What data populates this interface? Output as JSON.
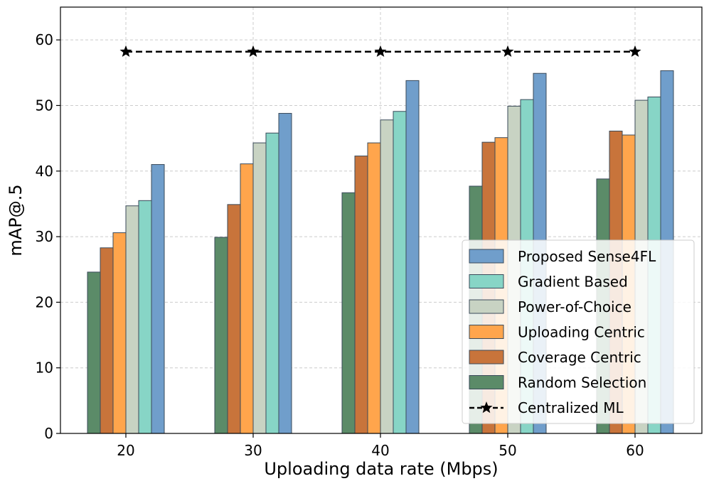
{
  "chart_data": {
    "type": "bar",
    "xlabel": "Uploading data rate (Mbps)",
    "ylabel": "mAP@.5",
    "categories": [
      "20",
      "30",
      "40",
      "50",
      "60"
    ],
    "ylim": [
      0,
      65
    ],
    "yticks": [
      0,
      10,
      20,
      30,
      40,
      50,
      60
    ],
    "grid": true,
    "legend_position": "lower-right",
    "series": [
      {
        "name": "Random Selection",
        "color": "#5b8b68",
        "values": [
          24.6,
          29.9,
          36.7,
          37.7,
          38.8
        ]
      },
      {
        "name": "Coverage Centric",
        "color": "#c8743b",
        "values": [
          28.3,
          34.9,
          42.3,
          44.4,
          46.1
        ]
      },
      {
        "name": "Uploading Centric",
        "color": "#ffa54c",
        "values": [
          30.6,
          41.1,
          44.3,
          45.1,
          45.5
        ]
      },
      {
        "name": "Power-of-Choice",
        "color": "#c8d3c3",
        "values": [
          34.7,
          44.3,
          47.8,
          49.9,
          50.8
        ]
      },
      {
        "name": "Gradient Based",
        "color": "#87d5c6",
        "values": [
          35.5,
          45.8,
          49.1,
          50.9,
          51.3
        ]
      },
      {
        "name": "Proposed Sense4FL",
        "color": "#709ecb",
        "values": [
          41.0,
          48.8,
          53.8,
          54.9,
          55.3
        ]
      }
    ],
    "line_series": {
      "name": "Centralized ML",
      "values": [
        58.2,
        58.2,
        58.2,
        58.2,
        58.2
      ],
      "marker": "star",
      "style": "dashed",
      "color": "#000000"
    },
    "legend_order": [
      "Proposed Sense4FL",
      "Gradient Based",
      "Power-of-Choice",
      "Uploading Centric",
      "Coverage Centric",
      "Random Selection",
      "Centralized ML"
    ]
  }
}
